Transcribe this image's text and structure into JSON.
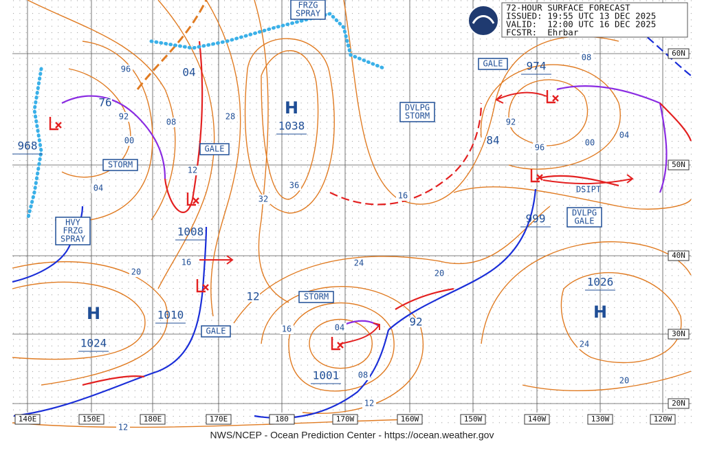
{
  "header": {
    "lines": [
      "72-HOUR SURFACE FORECAST",
      "ISSUED: 19:55 UTC 13 DEC 2025",
      "VALID:  12:00 UTC 16 DEC 2025",
      "FCSTR:  Ehrbar"
    ]
  },
  "lat_labels": [
    "60N",
    "50N",
    "40N",
    "30N",
    "20N"
  ],
  "lon_labels": [
    "140E",
    "150E",
    "180E",
    "170E",
    "180",
    "170W",
    "160W",
    "150W",
    "140W",
    "130W",
    "120W"
  ],
  "highs": [
    {
      "symbol": "H",
      "pressure": "1038"
    },
    {
      "symbol": "H",
      "pressure": "1024"
    },
    {
      "symbol": "H",
      "pressure": "1026"
    }
  ],
  "lows": [
    {
      "pressure": "968"
    },
    {
      "pressure": "1008"
    },
    {
      "pressure": "1010"
    },
    {
      "pressure": "1001"
    },
    {
      "pressure": "999"
    },
    {
      "pressure": "974"
    }
  ],
  "isobar_labels": [
    "76",
    "92",
    "00",
    "04",
    "96",
    "04",
    "08",
    "28",
    "36",
    "32",
    "12",
    "16",
    "12",
    "20",
    "24",
    "20",
    "16",
    "04",
    "08",
    "12",
    "92",
    "16",
    "84",
    "92",
    "96",
    "00",
    "04",
    "08",
    "24",
    "20",
    "12"
  ],
  "warnings": [
    {
      "lines": [
        "FRZG",
        "SPRAY"
      ]
    },
    {
      "lines": [
        "GALE"
      ]
    },
    {
      "lines": [
        "STORM"
      ]
    },
    {
      "lines": [
        "GALE"
      ]
    },
    {
      "lines": [
        "DVLPG",
        "STORM"
      ]
    },
    {
      "lines": [
        "HVY",
        "FRZG",
        "SPRAY"
      ]
    },
    {
      "lines": [
        "STORM"
      ]
    },
    {
      "lines": [
        "GALE"
      ]
    },
    {
      "lines": [
        "DSIPT"
      ]
    },
    {
      "lines": [
        "DVLPG",
        "GALE"
      ]
    }
  ],
  "footer": "NWS/NCEP - Ocean Prediction Center - https://ocean.weather.gov"
}
